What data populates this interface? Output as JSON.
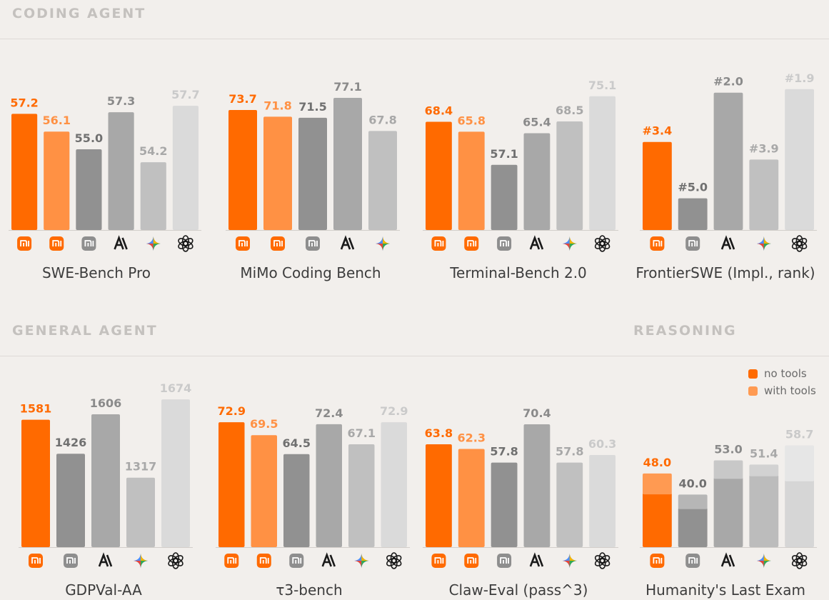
{
  "sections": {
    "coding": "CODING AGENT",
    "general": "GENERAL AGENT",
    "reasoning": "REASONING"
  },
  "legend": [
    {
      "label": "no tools",
      "color": "#ff6a00"
    },
    {
      "label": "with tools",
      "color": "#ff9a52"
    }
  ],
  "model_icons": {
    "mimo": "xiaomi-logo-icon",
    "mimo_alt": "xiaomi-logo-icon",
    "gray": "xiaomi-gray-logo-icon",
    "anthropic": "anthropic-logo-icon",
    "gemini": "gemini-sparkle-icon",
    "openai": "openai-logo-icon"
  },
  "colors": {
    "orange": "#ff6a00",
    "light_orange": "#ff9144",
    "dark_gray": "#919191",
    "mid_gray": "#a8a8a8",
    "light_gray": "#c0c0c0",
    "lighter_gray": "#dadada"
  },
  "chart_data": [
    {
      "type": "bar",
      "title": "SWE-Bench Pro",
      "ylim": [
        50,
        58.5
      ],
      "bars": [
        {
          "model": "mimo",
          "value": 57.2,
          "label": "57.2",
          "color": "orange"
        },
        {
          "model": "mimo_alt",
          "value": 56.1,
          "label": "56.1",
          "color": "light_orange"
        },
        {
          "model": "gray",
          "value": 55.0,
          "label": "55.0",
          "color": "dark_gray"
        },
        {
          "model": "anthropic",
          "value": 57.3,
          "label": "57.3",
          "color": "mid_gray"
        },
        {
          "model": "gemini",
          "value": 54.2,
          "label": "54.2",
          "color": "light_gray"
        },
        {
          "model": "openai",
          "value": 57.7,
          "label": "57.7",
          "color": "lighter_gray"
        }
      ]
    },
    {
      "type": "bar",
      "title": "MiMo Coding Bench",
      "ylim": [
        40,
        78.5
      ],
      "bars": [
        {
          "model": "mimo",
          "value": 73.7,
          "label": "73.7",
          "color": "orange"
        },
        {
          "model": "mimo_alt",
          "value": 71.8,
          "label": "71.8",
          "color": "light_orange"
        },
        {
          "model": "gray",
          "value": 71.5,
          "label": "71.5",
          "color": "dark_gray"
        },
        {
          "model": "anthropic",
          "value": 77.1,
          "label": "77.1",
          "color": "mid_gray"
        },
        {
          "model": "gemini",
          "value": 67.8,
          "label": "67.8",
          "color": "light_gray"
        }
      ]
    },
    {
      "type": "bar",
      "title": "Terminal-Bench 2.0",
      "ylim": [
        40,
        76
      ],
      "bars": [
        {
          "model": "mimo",
          "value": 68.4,
          "label": "68.4",
          "color": "orange"
        },
        {
          "model": "mimo_alt",
          "value": 65.8,
          "label": "65.8",
          "color": "light_orange"
        },
        {
          "model": "gray",
          "value": 57.1,
          "label": "57.1",
          "color": "dark_gray"
        },
        {
          "model": "anthropic",
          "value": 65.4,
          "label": "65.4",
          "color": "mid_gray"
        },
        {
          "model": "gemini",
          "value": 68.5,
          "label": "68.5",
          "color": "light_gray"
        },
        {
          "model": "openai",
          "value": 75.1,
          "label": "75.1",
          "color": "lighter_gray"
        }
      ]
    },
    {
      "type": "bar",
      "title": "FrontierSWE (Impl., rank)",
      "ylim": [
        5.9,
        1.6
      ],
      "bars": [
        {
          "model": "mimo",
          "value": 3.4,
          "label": "#3.4",
          "color": "orange"
        },
        {
          "model": "gray",
          "value": 5.0,
          "label": "#5.0",
          "color": "dark_gray"
        },
        {
          "model": "anthropic",
          "value": 2.0,
          "label": "#2.0",
          "color": "mid_gray"
        },
        {
          "model": "gemini",
          "value": 3.9,
          "label": "#3.9",
          "color": "light_gray"
        },
        {
          "model": "openai",
          "value": 1.9,
          "label": "#1.9",
          "color": "lighter_gray"
        }
      ]
    },
    {
      "type": "bar",
      "title": "GDPVal-AA",
      "ylim": [
        1000,
        1720
      ],
      "bars": [
        {
          "model": "mimo",
          "value": 1581,
          "label": "1581",
          "color": "orange"
        },
        {
          "model": "gray",
          "value": 1426,
          "label": "1426",
          "color": "dark_gray"
        },
        {
          "model": "anthropic",
          "value": 1606,
          "label": "1606",
          "color": "mid_gray"
        },
        {
          "model": "gemini",
          "value": 1317,
          "label": "1317",
          "color": "light_gray"
        },
        {
          "model": "openai",
          "value": 1674,
          "label": "1674",
          "color": "lighter_gray"
        }
      ]
    },
    {
      "type": "bar",
      "title": "τ3-bench",
      "ylim": [
        40,
        75
      ],
      "bars": [
        {
          "model": "mimo",
          "value": 72.9,
          "label": "72.9",
          "color": "orange"
        },
        {
          "model": "mimo_alt",
          "value": 69.5,
          "label": "69.5",
          "color": "light_orange"
        },
        {
          "model": "gray",
          "value": 64.5,
          "label": "64.5",
          "color": "dark_gray"
        },
        {
          "model": "anthropic",
          "value": 72.4,
          "label": "72.4",
          "color": "mid_gray"
        },
        {
          "model": "gemini",
          "value": 67.1,
          "label": "67.1",
          "color": "light_gray"
        },
        {
          "model": "openai",
          "value": 72.9,
          "label": "72.9",
          "color": "lighter_gray"
        }
      ]
    },
    {
      "type": "bar",
      "title": "Claw-Eval (pass^3)",
      "ylim": [
        30,
        72.5
      ],
      "bars": [
        {
          "model": "mimo",
          "value": 63.8,
          "label": "63.8",
          "color": "orange"
        },
        {
          "model": "mimo_alt",
          "value": 62.3,
          "label": "62.3",
          "color": "light_orange"
        },
        {
          "model": "gray",
          "value": 57.8,
          "label": "57.8",
          "color": "dark_gray"
        },
        {
          "model": "anthropic",
          "value": 70.4,
          "label": "70.4",
          "color": "mid_gray"
        },
        {
          "model": "gemini",
          "value": 57.8,
          "label": "57.8",
          "color": "light_gray"
        },
        {
          "model": "openai",
          "value": 60.3,
          "label": "60.3",
          "color": "lighter_gray"
        }
      ]
    },
    {
      "type": "bar",
      "title": "Humanity's Last Exam",
      "ylim": [
        20,
        61
      ],
      "stacked": true,
      "bars": [
        {
          "model": "mimo",
          "value": 48.0,
          "base": 40.6,
          "label": "48.0",
          "color": "orange",
          "base_color": "#ff6a00",
          "top_color": "#ff9a52"
        },
        {
          "model": "gray",
          "value": 40.0,
          "base": 35.0,
          "label": "40.0",
          "color": "dark_gray",
          "base_color": "#919191",
          "top_color": "#b6b6b6"
        },
        {
          "model": "anthropic",
          "value": 53.0,
          "base": 46.5,
          "label": "53.0",
          "color": "mid_gray",
          "base_color": "#a8a8a8",
          "top_color": "#c8c8c8"
        },
        {
          "model": "gemini",
          "value": 51.4,
          "base": 47.5,
          "label": "51.4",
          "color": "light_gray",
          "base_color": "#bcbcbc",
          "top_color": "#d2d2d2"
        },
        {
          "model": "openai",
          "value": 58.7,
          "base": 45.6,
          "label": "58.7",
          "color": "lighter_gray",
          "base_color": "#d6d6d6",
          "top_color": "#e6e6e6"
        }
      ]
    }
  ]
}
